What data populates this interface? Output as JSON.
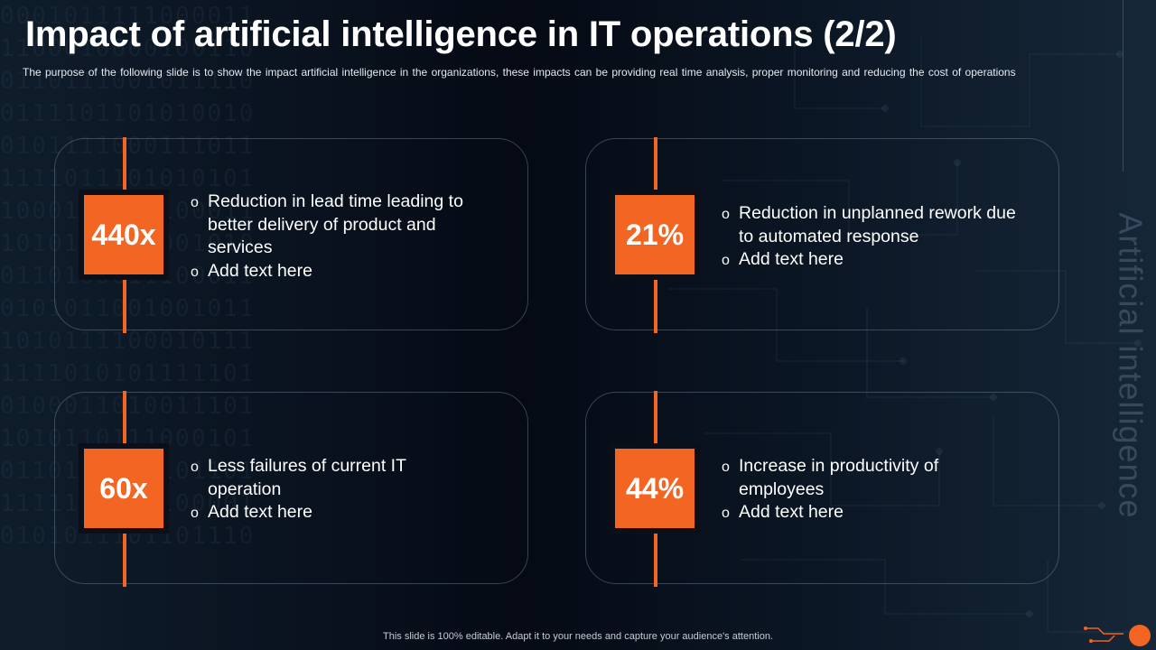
{
  "slide": {
    "title": "Impact of artificial intelligence in IT operations (2/2)",
    "subtitle": "The purpose of the following slide is to show the impact  artificial intelligence in the organizations, these impacts can be providing  real time analysis, proper monitoring and reducing the cost of operations",
    "side_label": "Artificial intelligence",
    "footer": "This slide is 100% editable. Adapt it to your needs and capture your audience's attention."
  },
  "cards": [
    {
      "stat": "440x",
      "bullets": [
        "Reduction in lead time leading to better delivery of product and services",
        "Add  text here"
      ]
    },
    {
      "stat": "21%",
      "bullets": [
        "Reduction in unplanned  rework due to automated response",
        "Add  text here"
      ]
    },
    {
      "stat": "60x",
      "bullets": [
        "Less failures of current IT operation",
        "Add  text here"
      ]
    },
    {
      "stat": "44%",
      "bullets": [
        "Increase in productivity of employees",
        "Add  text here"
      ]
    }
  ],
  "colors": {
    "accent": "#f26522",
    "background": "#0a1320"
  }
}
